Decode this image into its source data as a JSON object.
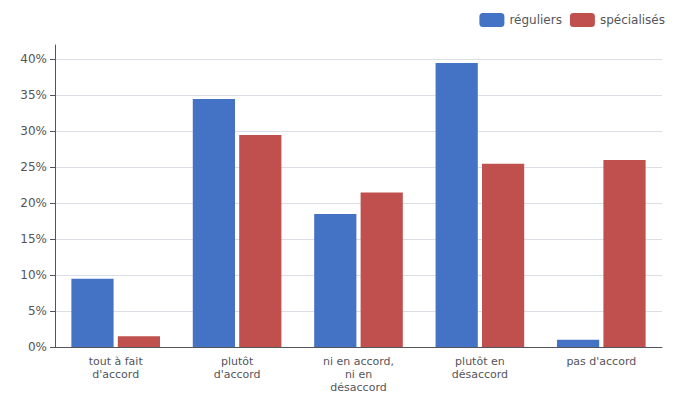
{
  "chart_data": {
    "type": "bar",
    "categories": [
      "tout à fait\nd'accord",
      "plutôt\nd'accord",
      "ni en accord,\nni en\ndésaccord",
      "plutôt en\ndésaccord",
      "pas d'accord"
    ],
    "series": [
      {
        "name": "réguliers",
        "color": "#4472C4",
        "values": [
          9.5,
          34.5,
          18.5,
          39.5,
          1.0
        ]
      },
      {
        "name": "spécialisés",
        "color": "#C0504D",
        "values": [
          1.5,
          29.5,
          21.5,
          25.5,
          26.0
        ]
      }
    ],
    "ylim": [
      0,
      42
    ],
    "yticks": [
      {
        "value": 0,
        "label": "0%"
      },
      {
        "value": 5,
        "label": "5%"
      },
      {
        "value": 10,
        "label": "10%"
      },
      {
        "value": 15,
        "label": "15%"
      },
      {
        "value": 20,
        "label": "20%"
      },
      {
        "value": 25,
        "label": "25%"
      },
      {
        "value": 30,
        "label": "30%"
      },
      {
        "value": 35,
        "label": "35%"
      },
      {
        "value": 40,
        "label": "40%"
      }
    ],
    "grid": true,
    "legend": "upper right"
  }
}
